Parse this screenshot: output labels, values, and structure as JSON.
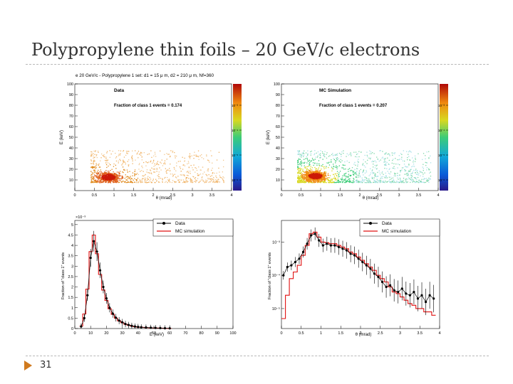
{
  "slide": {
    "title": "Polypropylene thin foils – 20 GeV/c electrons",
    "page_number": "31"
  },
  "colors": {
    "data_orange": "#e08a1c",
    "hot_red": "#cc1a08",
    "mc_red": "#e01010",
    "data_black": "#000000",
    "accent": "#d07a1e"
  },
  "chart_data": [
    {
      "type": "heatmap",
      "title": "e 20 GeV/c - Polypropylene 1 set: d1 = 15 μ m, d2 = 210 μ m, Nf=360",
      "label": "Data",
      "fraction_text": "Fraction of class 1 events = 0.174",
      "xlabel": "θ (mrad)",
      "ylabel": "E (keV)",
      "xlim": [
        0,
        4
      ],
      "ylim": [
        0,
        100
      ],
      "xticks": [
        "0",
        "0.5",
        "1",
        "1.5",
        "2",
        "2.5",
        "3",
        "3.5",
        "4"
      ],
      "yticks": [
        "10",
        "20",
        "30",
        "40",
        "50",
        "60",
        "70",
        "80",
        "90",
        "100"
      ],
      "colorbar_ticks": [
        "10⁻³",
        "10⁻⁴",
        "10⁻⁵",
        "10⁻⁶"
      ],
      "peak": {
        "theta": 0.85,
        "energy": 13
      },
      "fraction_class1": 0.174
    },
    {
      "type": "heatmap",
      "title": "",
      "label": "MC Simulation",
      "fraction_text": "Fraction of class 1 events = 0.207",
      "xlabel": "θ (mrad)",
      "ylabel": "E (keV)",
      "xlim": [
        0,
        4
      ],
      "ylim": [
        0,
        100
      ],
      "xticks": [
        "0",
        "0.5",
        "1",
        "1.5",
        "2",
        "2.5",
        "3",
        "3.5",
        "4"
      ],
      "yticks": [
        "10",
        "20",
        "30",
        "40",
        "50",
        "60",
        "70",
        "80",
        "90",
        "100"
      ],
      "colorbar_ticks": [
        "10⁻³",
        "10⁻⁴",
        "10⁻⁵",
        "10⁻⁶"
      ],
      "peak": {
        "theta": 0.85,
        "energy": 14
      },
      "fraction_class1": 0.207
    },
    {
      "type": "line",
      "xlabel": "E (keV)",
      "ylabel": "Fraction of \"class 1\" events",
      "y_multiplier": "×10⁻³",
      "xlim": [
        0,
        100
      ],
      "ylim": [
        0,
        5.2
      ],
      "xticks": [
        "0",
        "10",
        "20",
        "30",
        "40",
        "50",
        "60",
        "70",
        "80",
        "90",
        "100"
      ],
      "yticks": [
        "0",
        "0.5",
        "1",
        "1.5",
        "2",
        "2.5",
        "3",
        "3.5",
        "4",
        "4.5",
        "5"
      ],
      "legend": [
        "Data",
        "MC simulation"
      ],
      "series": [
        {
          "name": "Data",
          "x": [
            4,
            6,
            8,
            10,
            12,
            14,
            16,
            18,
            20,
            22,
            24,
            26,
            28,
            30,
            32,
            34,
            36,
            38,
            40,
            42,
            45,
            48,
            51,
            54,
            57,
            60
          ],
          "values": [
            0.1,
            0.5,
            1.6,
            3.4,
            4.2,
            3.7,
            2.8,
            2.0,
            1.45,
            1.0,
            0.72,
            0.52,
            0.38,
            0.3,
            0.22,
            0.17,
            0.13,
            0.1,
            0.08,
            0.06,
            0.05,
            0.04,
            0.03,
            0.02,
            0.015,
            0.01
          ]
        },
        {
          "name": "MC simulation",
          "x": [
            4,
            6,
            8,
            10,
            12,
            14,
            16,
            18,
            20,
            22,
            24,
            26,
            28,
            30,
            32,
            34,
            36,
            38,
            40,
            42,
            45,
            48,
            51,
            54,
            57,
            60
          ],
          "values": [
            0.12,
            0.7,
            1.9,
            3.7,
            4.5,
            3.6,
            2.6,
            1.85,
            1.35,
            0.95,
            0.68,
            0.5,
            0.37,
            0.28,
            0.21,
            0.16,
            0.12,
            0.09,
            0.07,
            0.06,
            0.045,
            0.035,
            0.025,
            0.02,
            0.012,
            0.008
          ]
        }
      ]
    },
    {
      "type": "line",
      "xlabel": "θ (mrad)",
      "ylabel": "Fraction of \"class 1\" events",
      "yscale": "log",
      "xlim": [
        0,
        4
      ],
      "yticks": [
        "10⁻³",
        "10⁻⁴",
        "10⁻⁵"
      ],
      "xticks": [
        "0",
        "0.5",
        "1",
        "1.5",
        "2",
        "2.5",
        "3",
        "3.5",
        "4"
      ],
      "legend": [
        "Data",
        "MC simulation"
      ],
      "series": [
        {
          "name": "Data",
          "x": [
            0.05,
            0.15,
            0.25,
            0.35,
            0.45,
            0.55,
            0.65,
            0.75,
            0.85,
            0.95,
            1.05,
            1.15,
            1.25,
            1.35,
            1.45,
            1.55,
            1.65,
            1.75,
            1.85,
            1.95,
            2.05,
            2.15,
            2.25,
            2.35,
            2.45,
            2.55,
            2.65,
            2.75,
            2.85,
            2.95,
            3.05,
            3.15,
            3.25,
            3.35,
            3.45,
            3.55,
            3.65,
            3.75,
            3.85
          ],
          "values": [
            -4.0,
            -3.75,
            -3.7,
            -3.6,
            -3.5,
            -3.3,
            -3.05,
            -2.8,
            -2.75,
            -2.95,
            -3.1,
            -3.05,
            -3.1,
            -3.1,
            -3.15,
            -3.2,
            -3.25,
            -3.35,
            -3.4,
            -3.5,
            -3.6,
            -3.7,
            -3.8,
            -3.95,
            -4.05,
            -4.2,
            -4.35,
            -4.3,
            -4.45,
            -4.5,
            -4.4,
            -4.55,
            -4.6,
            -4.5,
            -4.7,
            -4.6,
            -4.8,
            -4.6,
            -4.7
          ]
        },
        {
          "name": "MC simulation",
          "x": [
            0.05,
            0.15,
            0.25,
            0.35,
            0.45,
            0.55,
            0.65,
            0.75,
            0.85,
            0.95,
            1.05,
            1.15,
            1.25,
            1.35,
            1.45,
            1.55,
            1.65,
            1.75,
            1.85,
            1.95,
            2.05,
            2.15,
            2.25,
            2.35,
            2.45,
            2.55,
            2.65,
            2.75,
            2.85,
            2.95,
            3.05,
            3.15,
            3.25,
            3.35,
            3.45,
            3.55,
            3.65,
            3.75,
            3.85
          ],
          "values": [
            -5.3,
            -4.6,
            -4.1,
            -3.9,
            -3.7,
            -3.4,
            -3.1,
            -2.75,
            -2.7,
            -2.85,
            -3.0,
            -3.02,
            -3.05,
            -3.05,
            -3.1,
            -3.15,
            -3.2,
            -3.3,
            -3.35,
            -3.45,
            -3.55,
            -3.65,
            -3.75,
            -3.85,
            -4.0,
            -4.1,
            -4.2,
            -4.35,
            -4.5,
            -4.55,
            -4.65,
            -4.75,
            -4.85,
            -4.9,
            -5.0,
            -5.0,
            -5.1,
            -5.1,
            -5.2
          ]
        }
      ]
    }
  ]
}
